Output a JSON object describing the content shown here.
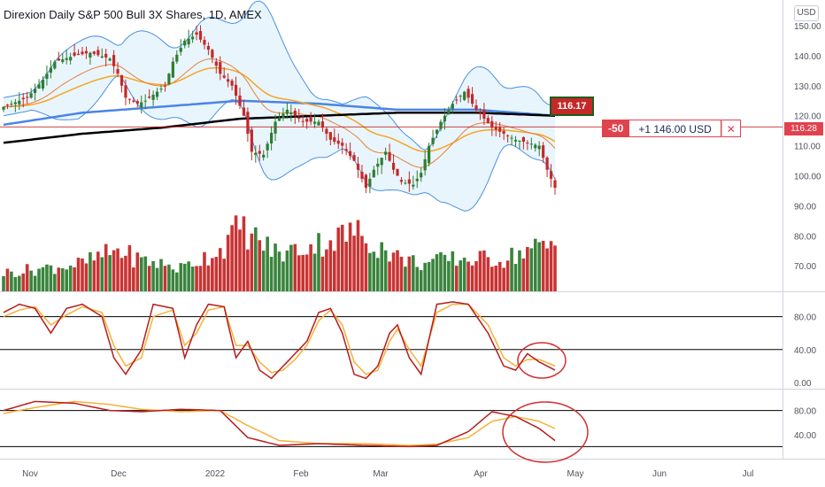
{
  "title": "Direxion Daily S&P 500 Bull 3X Shares, 1D, AMEX",
  "currency_label": "USD",
  "order": {
    "quantity": "-50",
    "pnl": "+1 146.00 USD",
    "close_glyph": "✕"
  },
  "last_price_label": "116.28",
  "marker_label": "116.17",
  "colors": {
    "up": "#2e7d32",
    "down": "#c62828",
    "bb_fill": "#e3f2fd",
    "bb_line": "#4a90e2",
    "sma_long": "#000000",
    "sma_mid": "#4a84e6",
    "ema_orange": "#f5a623",
    "ema_red": "#e8803a",
    "stoch_k": "#b71c1c",
    "stoch_d": "#f5b13a",
    "annotation": "#d32f2f"
  },
  "chart_data": {
    "type": "candlestick",
    "main_axis": {
      "ticks": [
        150,
        140,
        130,
        120,
        110,
        100,
        90,
        80,
        70
      ],
      "range": [
        63,
        155
      ]
    },
    "x_labels": [
      "Nov",
      "Dec",
      "2022",
      "Feb",
      "Mar",
      "Apr",
      "May",
      "Jun",
      "Jul"
    ],
    "osc1_axis": {
      "ticks": [
        "80.00",
        "40.00",
        "0.00"
      ],
      "levels": [
        80,
        40
      ]
    },
    "osc2_axis": {
      "ticks": [
        "80.00",
        "40.00"
      ],
      "levels": [
        80,
        20
      ]
    },
    "anchors": {
      "close": [
        [
          0,
          123
        ],
        [
          6,
          126
        ],
        [
          10,
          132
        ],
        [
          13,
          138
        ],
        [
          18,
          140
        ],
        [
          22,
          141
        ],
        [
          27,
          139
        ],
        [
          29,
          134
        ],
        [
          31,
          126
        ],
        [
          34,
          124
        ],
        [
          36,
          125
        ],
        [
          39,
          128
        ],
        [
          41,
          130
        ],
        [
          43,
          138
        ],
        [
          46,
          145
        ],
        [
          49,
          147
        ],
        [
          52,
          142
        ],
        [
          55,
          134
        ],
        [
          58,
          130
        ],
        [
          61,
          120
        ],
        [
          63,
          108
        ],
        [
          66,
          107
        ],
        [
          69,
          118
        ],
        [
          72,
          122
        ],
        [
          76,
          118
        ],
        [
          80,
          118
        ],
        [
          83,
          112
        ],
        [
          86,
          110
        ],
        [
          89,
          105
        ],
        [
          92,
          96
        ],
        [
          94,
          102
        ],
        [
          97,
          108
        ],
        [
          99,
          102
        ],
        [
          101,
          98
        ],
        [
          104,
          97
        ],
        [
          106,
          101
        ],
        [
          108,
          110
        ],
        [
          111,
          118
        ],
        [
          114,
          124
        ],
        [
          117,
          128
        ],
        [
          120,
          122
        ],
        [
          122,
          119
        ],
        [
          124,
          116
        ],
        [
          127,
          114
        ],
        [
          130,
          112
        ],
        [
          133,
          111
        ],
        [
          136,
          110
        ],
        [
          138,
          102
        ],
        [
          140,
          96
        ]
      ],
      "volume": [
        [
          0,
          4
        ],
        [
          10,
          5
        ],
        [
          20,
          6
        ],
        [
          29,
          9
        ],
        [
          34,
          7
        ],
        [
          45,
          5
        ],
        [
          55,
          9
        ],
        [
          60,
          14
        ],
        [
          63,
          12
        ],
        [
          70,
          8
        ],
        [
          78,
          10
        ],
        [
          83,
          11
        ],
        [
          89,
          13
        ],
        [
          95,
          10
        ],
        [
          101,
          7
        ],
        [
          107,
          6
        ],
        [
          113,
          7
        ],
        [
          120,
          7
        ],
        [
          127,
          7
        ],
        [
          133,
          9
        ],
        [
          140,
          10
        ]
      ],
      "osc1_k": [
        [
          0,
          85
        ],
        [
          4,
          95
        ],
        [
          8,
          90
        ],
        [
          12,
          60
        ],
        [
          16,
          90
        ],
        [
          20,
          95
        ],
        [
          25,
          80
        ],
        [
          28,
          30
        ],
        [
          31,
          10
        ],
        [
          35,
          40
        ],
        [
          38,
          95
        ],
        [
          43,
          90
        ],
        [
          46,
          30
        ],
        [
          49,
          70
        ],
        [
          52,
          95
        ],
        [
          56,
          92
        ],
        [
          59,
          30
        ],
        [
          62,
          50
        ],
        [
          65,
          15
        ],
        [
          68,
          5
        ],
        [
          71,
          20
        ],
        [
          74,
          35
        ],
        [
          77,
          50
        ],
        [
          80,
          85
        ],
        [
          83,
          90
        ],
        [
          86,
          60
        ],
        [
          89,
          10
        ],
        [
          92,
          5
        ],
        [
          95,
          20
        ],
        [
          98,
          60
        ],
        [
          100,
          70
        ],
        [
          103,
          30
        ],
        [
          106,
          10
        ],
        [
          110,
          95
        ],
        [
          114,
          98
        ],
        [
          118,
          95
        ],
        [
          123,
          60
        ],
        [
          127,
          20
        ],
        [
          130,
          15
        ],
        [
          133,
          35
        ],
        [
          136,
          25
        ],
        [
          140,
          15
        ]
      ],
      "osc1_d": [
        [
          0,
          80
        ],
        [
          4,
          88
        ],
        [
          8,
          92
        ],
        [
          12,
          70
        ],
        [
          16,
          82
        ],
        [
          20,
          92
        ],
        [
          25,
          85
        ],
        [
          28,
          45
        ],
        [
          31,
          20
        ],
        [
          35,
          30
        ],
        [
          38,
          80
        ],
        [
          43,
          88
        ],
        [
          46,
          45
        ],
        [
          49,
          60
        ],
        [
          52,
          88
        ],
        [
          56,
          92
        ],
        [
          59,
          45
        ],
        [
          62,
          45
        ],
        [
          65,
          25
        ],
        [
          68,
          12
        ],
        [
          71,
          15
        ],
        [
          74,
          28
        ],
        [
          77,
          45
        ],
        [
          80,
          75
        ],
        [
          83,
          88
        ],
        [
          86,
          70
        ],
        [
          89,
          25
        ],
        [
          92,
          10
        ],
        [
          95,
          15
        ],
        [
          98,
          50
        ],
        [
          100,
          65
        ],
        [
          103,
          40
        ],
        [
          106,
          20
        ],
        [
          110,
          85
        ],
        [
          114,
          95
        ],
        [
          118,
          95
        ],
        [
          123,
          70
        ],
        [
          127,
          30
        ],
        [
          130,
          20
        ],
        [
          133,
          28
        ],
        [
          136,
          28
        ],
        [
          140,
          20
        ]
      ],
      "osc2_k": [
        [
          0,
          80
        ],
        [
          8,
          95
        ],
        [
          18,
          92
        ],
        [
          27,
          80
        ],
        [
          35,
          78
        ],
        [
          45,
          82
        ],
        [
          55,
          80
        ],
        [
          62,
          35
        ],
        [
          70,
          22
        ],
        [
          80,
          25
        ],
        [
          92,
          22
        ],
        [
          103,
          20
        ],
        [
          110,
          22
        ],
        [
          118,
          45
        ],
        [
          124,
          78
        ],
        [
          130,
          70
        ],
        [
          136,
          50
        ],
        [
          140,
          30
        ]
      ],
      "osc2_d": [
        [
          0,
          75
        ],
        [
          8,
          85
        ],
        [
          18,
          95
        ],
        [
          27,
          90
        ],
        [
          35,
          82
        ],
        [
          45,
          78
        ],
        [
          55,
          80
        ],
        [
          62,
          55
        ],
        [
          70,
          30
        ],
        [
          80,
          25
        ],
        [
          92,
          25
        ],
        [
          103,
          22
        ],
        [
          110,
          24
        ],
        [
          118,
          35
        ],
        [
          124,
          62
        ],
        [
          130,
          70
        ],
        [
          136,
          62
        ],
        [
          140,
          50
        ]
      ],
      "sma200": [
        [
          0,
          111
        ],
        [
          20,
          114
        ],
        [
          40,
          116
        ],
        [
          60,
          119
        ],
        [
          80,
          120
        ],
        [
          100,
          121
        ],
        [
          120,
          121
        ],
        [
          140,
          120
        ]
      ],
      "sma_mid": [
        [
          0,
          117
        ],
        [
          20,
          121
        ],
        [
          40,
          123
        ],
        [
          60,
          125
        ],
        [
          80,
          124
        ],
        [
          100,
          122
        ],
        [
          120,
          122
        ],
        [
          140,
          120
        ]
      ]
    }
  }
}
